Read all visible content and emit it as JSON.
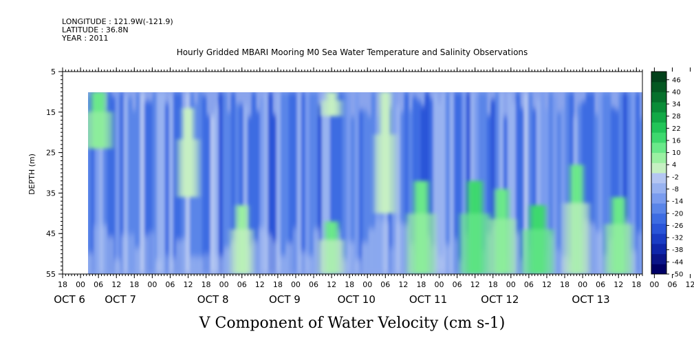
{
  "header": {
    "longitude": "LONGITUDE : 121.9W(-121.9)",
    "latitude": "LATITUDE : 36.8N",
    "year": "YEAR : 2011"
  },
  "chart_data": {
    "type": "heatmap",
    "title": "Hourly Gridded MBARI Mooring M0 Sea Water Temperature and Salinity Observations",
    "variable_title": "V Component of Water Velocity (cm s-1)",
    "ylabel": "DEPTH (m)",
    "ylim": [
      55,
      5
    ],
    "yticks": [
      5,
      15,
      25,
      35,
      45,
      55
    ],
    "data_depth_range": [
      10,
      55
    ],
    "x_start": "2011-10-05T18:00",
    "x_end": "2011-10-13T20:00",
    "data_time_start": "2011-10-06T02:00",
    "hour_tick_labels": [
      "18",
      "00",
      "06",
      "12",
      "18",
      "00",
      "06",
      "12",
      "18",
      "00",
      "06",
      "12",
      "18",
      "00",
      "06",
      "12",
      "18",
      "00",
      "06",
      "12",
      "18",
      "00",
      "06",
      "12",
      "18",
      "00",
      "06",
      "12",
      "18",
      "00",
      "06",
      "12",
      "18",
      "00",
      "06",
      "12",
      "18"
    ],
    "day_labels": [
      "OCT 6",
      "OCT 7",
      "OCT 8",
      "OCT 9",
      "OCT 10",
      "OCT 11",
      "OCT 12",
      "OCT 13"
    ],
    "colorbar": {
      "ticks": [
        46,
        40,
        34,
        28,
        22,
        16,
        10,
        4,
        -2,
        -8,
        -14,
        -20,
        -26,
        -32,
        -38,
        -44,
        -50
      ],
      "range": [
        -50,
        50
      ],
      "negative_colors": [
        "#000066",
        "#0a1488",
        "#0f26aa",
        "#1a3cc4",
        "#2a55d8",
        "#3d6ce2",
        "#5a85e8",
        "#7a9cee",
        "#98b2f0",
        "#b4c6f2"
      ],
      "positive_colors": [
        "#c6f0c2",
        "#9bf0a2",
        "#6ae88a",
        "#3ed86e",
        "#22c458",
        "#12a846",
        "#0a8c38",
        "#06702c",
        "#045822",
        "#02401a"
      ]
    },
    "green_patches": [
      {
        "t": "2011-10-06T06:00",
        "d": [
          10,
          24
        ],
        "v": 14
      },
      {
        "t": "2011-10-07T12:00",
        "d": [
          14,
          36
        ],
        "v": 4
      },
      {
        "t": "2011-10-08T06:00",
        "d": [
          38,
          55
        ],
        "v": 6
      },
      {
        "t": "2011-10-09T12:00",
        "d": [
          10,
          16
        ],
        "v": 4
      },
      {
        "t": "2011-10-09T12:00",
        "d": [
          42,
          55
        ],
        "v": 10
      },
      {
        "t": "2011-10-10T06:00",
        "d": [
          10,
          40
        ],
        "v": 4
      },
      {
        "t": "2011-10-10T18:00",
        "d": [
          32,
          55
        ],
        "v": 14
      },
      {
        "t": "2011-10-11T12:00",
        "d": [
          32,
          55
        ],
        "v": 16
      },
      {
        "t": "2011-10-11T21:00",
        "d": [
          34,
          55
        ],
        "v": 12
      },
      {
        "t": "2011-10-12T09:00",
        "d": [
          38,
          55
        ],
        "v": 18
      },
      {
        "t": "2011-10-12T22:00",
        "d": [
          28,
          55
        ],
        "v": 10
      },
      {
        "t": "2011-10-13T12:00",
        "d": [
          36,
          55
        ],
        "v": 12
      }
    ]
  }
}
